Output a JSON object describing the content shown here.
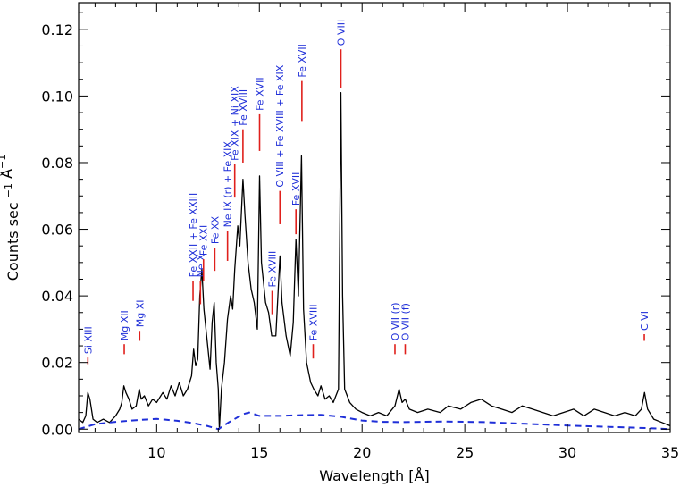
{
  "chart_data": {
    "type": "line",
    "xlabel": "Wavelength [Å]",
    "ylabel": "Counts sec",
    "ylabel_sup": "−1",
    "ylabel_unit": "Å",
    "xlim": [
      6.2,
      35
    ],
    "ylim": [
      -0.001,
      0.128
    ],
    "x_ticks": [
      10,
      15,
      20,
      25,
      30,
      35
    ],
    "x_ticklabels": [
      "10",
      "15",
      "20",
      "25",
      "30",
      "35"
    ],
    "y_ticks": [
      0.0,
      0.02,
      0.04,
      0.06,
      0.08,
      0.1,
      0.12
    ],
    "y_ticklabels": [
      "0.00",
      "0.02",
      "0.04",
      "0.06",
      "0.08",
      "0.10",
      "0.12"
    ],
    "series": [
      {
        "style": "solid",
        "color": "#000000",
        "points": [
          [
            6.2,
            0.003
          ],
          [
            6.4,
            0.002
          ],
          [
            6.55,
            0.004
          ],
          [
            6.65,
            0.011
          ],
          [
            6.75,
            0.009
          ],
          [
            6.9,
            0.003
          ],
          [
            7.1,
            0.002
          ],
          [
            7.4,
            0.003
          ],
          [
            7.7,
            0.002
          ],
          [
            8.0,
            0.004
          ],
          [
            8.2,
            0.006
          ],
          [
            8.3,
            0.008
          ],
          [
            8.4,
            0.013
          ],
          [
            8.5,
            0.011
          ],
          [
            8.65,
            0.009
          ],
          [
            8.8,
            0.006
          ],
          [
            9.0,
            0.007
          ],
          [
            9.15,
            0.012
          ],
          [
            9.25,
            0.009
          ],
          [
            9.4,
            0.01
          ],
          [
            9.6,
            0.007
          ],
          [
            9.8,
            0.009
          ],
          [
            10.0,
            0.008
          ],
          [
            10.3,
            0.011
          ],
          [
            10.5,
            0.009
          ],
          [
            10.7,
            0.013
          ],
          [
            10.9,
            0.01
          ],
          [
            11.1,
            0.014
          ],
          [
            11.3,
            0.01
          ],
          [
            11.5,
            0.012
          ],
          [
            11.7,
            0.016
          ],
          [
            11.8,
            0.024
          ],
          [
            11.9,
            0.019
          ],
          [
            12.0,
            0.021
          ],
          [
            12.1,
            0.04
          ],
          [
            12.2,
            0.048
          ],
          [
            12.3,
            0.036
          ],
          [
            12.4,
            0.03
          ],
          [
            12.5,
            0.024
          ],
          [
            12.6,
            0.018
          ],
          [
            12.7,
            0.032
          ],
          [
            12.8,
            0.038
          ],
          [
            12.9,
            0.02
          ],
          [
            13.0,
            0.012
          ],
          [
            13.05,
            0.0
          ],
          [
            13.15,
            0.012
          ],
          [
            13.3,
            0.02
          ],
          [
            13.45,
            0.033
          ],
          [
            13.6,
            0.04
          ],
          [
            13.7,
            0.036
          ],
          [
            13.8,
            0.048
          ],
          [
            13.95,
            0.061
          ],
          [
            14.05,
            0.055
          ],
          [
            14.2,
            0.075
          ],
          [
            14.3,
            0.064
          ],
          [
            14.45,
            0.05
          ],
          [
            14.6,
            0.042
          ],
          [
            14.75,
            0.038
          ],
          [
            14.9,
            0.03
          ],
          [
            15.01,
            0.076
          ],
          [
            15.1,
            0.05
          ],
          [
            15.3,
            0.038
          ],
          [
            15.45,
            0.035
          ],
          [
            15.6,
            0.028
          ],
          [
            15.8,
            0.028
          ],
          [
            16.0,
            0.052
          ],
          [
            16.1,
            0.038
          ],
          [
            16.3,
            0.028
          ],
          [
            16.5,
            0.022
          ],
          [
            16.65,
            0.032
          ],
          [
            16.78,
            0.057
          ],
          [
            16.9,
            0.04
          ],
          [
            17.05,
            0.082
          ],
          [
            17.15,
            0.036
          ],
          [
            17.3,
            0.02
          ],
          [
            17.5,
            0.014
          ],
          [
            17.65,
            0.012
          ],
          [
            17.85,
            0.01
          ],
          [
            18.0,
            0.013
          ],
          [
            18.2,
            0.009
          ],
          [
            18.4,
            0.01
          ],
          [
            18.6,
            0.008
          ],
          [
            18.85,
            0.012
          ],
          [
            18.97,
            0.101
          ],
          [
            19.05,
            0.04
          ],
          [
            19.15,
            0.012
          ],
          [
            19.4,
            0.008
          ],
          [
            19.7,
            0.006
          ],
          [
            20.0,
            0.005
          ],
          [
            20.4,
            0.004
          ],
          [
            20.8,
            0.005
          ],
          [
            21.2,
            0.004
          ],
          [
            21.6,
            0.007
          ],
          [
            21.8,
            0.012
          ],
          [
            21.95,
            0.008
          ],
          [
            22.1,
            0.009
          ],
          [
            22.3,
            0.006
          ],
          [
            22.7,
            0.005
          ],
          [
            23.2,
            0.006
          ],
          [
            23.8,
            0.005
          ],
          [
            24.2,
            0.007
          ],
          [
            24.8,
            0.006
          ],
          [
            25.3,
            0.008
          ],
          [
            25.8,
            0.009
          ],
          [
            26.3,
            0.007
          ],
          [
            26.8,
            0.006
          ],
          [
            27.3,
            0.005
          ],
          [
            27.8,
            0.007
          ],
          [
            28.3,
            0.006
          ],
          [
            28.8,
            0.005
          ],
          [
            29.3,
            0.004
          ],
          [
            29.8,
            0.005
          ],
          [
            30.3,
            0.006
          ],
          [
            30.8,
            0.004
          ],
          [
            31.3,
            0.006
          ],
          [
            31.8,
            0.005
          ],
          [
            32.3,
            0.004
          ],
          [
            32.8,
            0.005
          ],
          [
            33.3,
            0.004
          ],
          [
            33.6,
            0.006
          ],
          [
            33.75,
            0.011
          ],
          [
            33.9,
            0.006
          ],
          [
            34.2,
            0.003
          ],
          [
            34.6,
            0.002
          ],
          [
            35.0,
            0.001
          ]
        ]
      },
      {
        "style": "dashed",
        "color": "#1f2fd8",
        "points": [
          [
            6.2,
            0.0
          ],
          [
            7.0,
            0.0015
          ],
          [
            8.0,
            0.0022
          ],
          [
            9.0,
            0.0027
          ],
          [
            10.0,
            0.0031
          ],
          [
            11.0,
            0.0025
          ],
          [
            11.8,
            0.0018
          ],
          [
            12.5,
            0.0009
          ],
          [
            13.0,
            0.0
          ],
          [
            13.5,
            0.002
          ],
          [
            14.2,
            0.0045
          ],
          [
            14.5,
            0.005
          ],
          [
            15.0,
            0.004
          ],
          [
            16.0,
            0.004
          ],
          [
            17.0,
            0.0042
          ],
          [
            18.0,
            0.0043
          ],
          [
            19.0,
            0.0037
          ],
          [
            20.0,
            0.0026
          ],
          [
            21.0,
            0.0022
          ],
          [
            22.0,
            0.0021
          ],
          [
            24.0,
            0.0023
          ],
          [
            26.0,
            0.0021
          ],
          [
            28.0,
            0.0016
          ],
          [
            30.0,
            0.0011
          ],
          [
            32.0,
            0.0007
          ],
          [
            34.0,
            0.0003
          ],
          [
            35.0,
            0.0
          ]
        ]
      }
    ],
    "line_ids": [
      {
        "text": "Si XIII",
        "x": 6.65,
        "mark_y": [
          0.0195,
          0.0215
        ]
      },
      {
        "text": "Mg XII",
        "x": 8.42,
        "mark_y": [
          0.0225,
          0.0255
        ]
      },
      {
        "text": "Mg XI",
        "x": 9.17,
        "mark_y": [
          0.0265,
          0.0295
        ]
      },
      {
        "text": "Fe XXII + Fe XXIII",
        "x": 11.77,
        "mark_y": [
          0.0385,
          0.0445
        ]
      },
      {
        "text": "Ne X",
        "x": 12.13,
        "mark_y": [
          0.0375,
          0.0445
        ]
      },
      {
        "text": "Fe XXI",
        "x": 12.28,
        "mark_y": [
          0.0445,
          0.051
        ]
      },
      {
        "text": "Fe XX",
        "x": 12.83,
        "mark_y": [
          0.0475,
          0.0545
        ]
      },
      {
        "text": "Ne IX (r) + Fe XIX",
        "x": 13.45,
        "mark_y": [
          0.0505,
          0.0595
        ]
      },
      {
        "text": "Fe XIX + Ni XIX",
        "x": 13.8,
        "mark_y": [
          0.0695,
          0.0795
        ]
      },
      {
        "text": "Fe XVIII",
        "x": 14.2,
        "mark_y": [
          0.08,
          0.09
        ]
      },
      {
        "text": "Fe XVII",
        "x": 15.01,
        "mark_y": [
          0.0835,
          0.0945
        ]
      },
      {
        "text": "Fe XVIII",
        "x": 15.62,
        "mark_y": [
          0.0345,
          0.0415
        ]
      },
      {
        "text": "O VIII + Fe XVIII + Fe XIX",
        "x": 16.0,
        "mark_y": [
          0.0615,
          0.0715
        ]
      },
      {
        "text": "Fe XVII",
        "x": 16.78,
        "mark_y": [
          0.0585,
          0.066
        ]
      },
      {
        "text": "Fe XVII",
        "x": 17.07,
        "mark_y": [
          0.0925,
          0.1045
        ]
      },
      {
        "text": "Fe XVIII",
        "x": 17.62,
        "mark_y": [
          0.0212,
          0.0255
        ]
      },
      {
        "text": "O VIII",
        "x": 18.97,
        "mark_y": [
          0.1025,
          0.114
        ]
      },
      {
        "text": "O VII (r)",
        "x": 21.6,
        "mark_y": [
          0.0225,
          0.0255
        ]
      },
      {
        "text": "O VII (f)",
        "x": 22.1,
        "mark_y": [
          0.0225,
          0.0255
        ]
      },
      {
        "text": "C VI",
        "x": 33.74,
        "mark_y": [
          0.0265,
          0.0285
        ]
      }
    ],
    "grid": false,
    "legend": "none",
    "colors": {
      "data": "#000000",
      "model": "#1f2fd8",
      "marker": "#e0201c",
      "label": "#1f2fd8"
    }
  }
}
